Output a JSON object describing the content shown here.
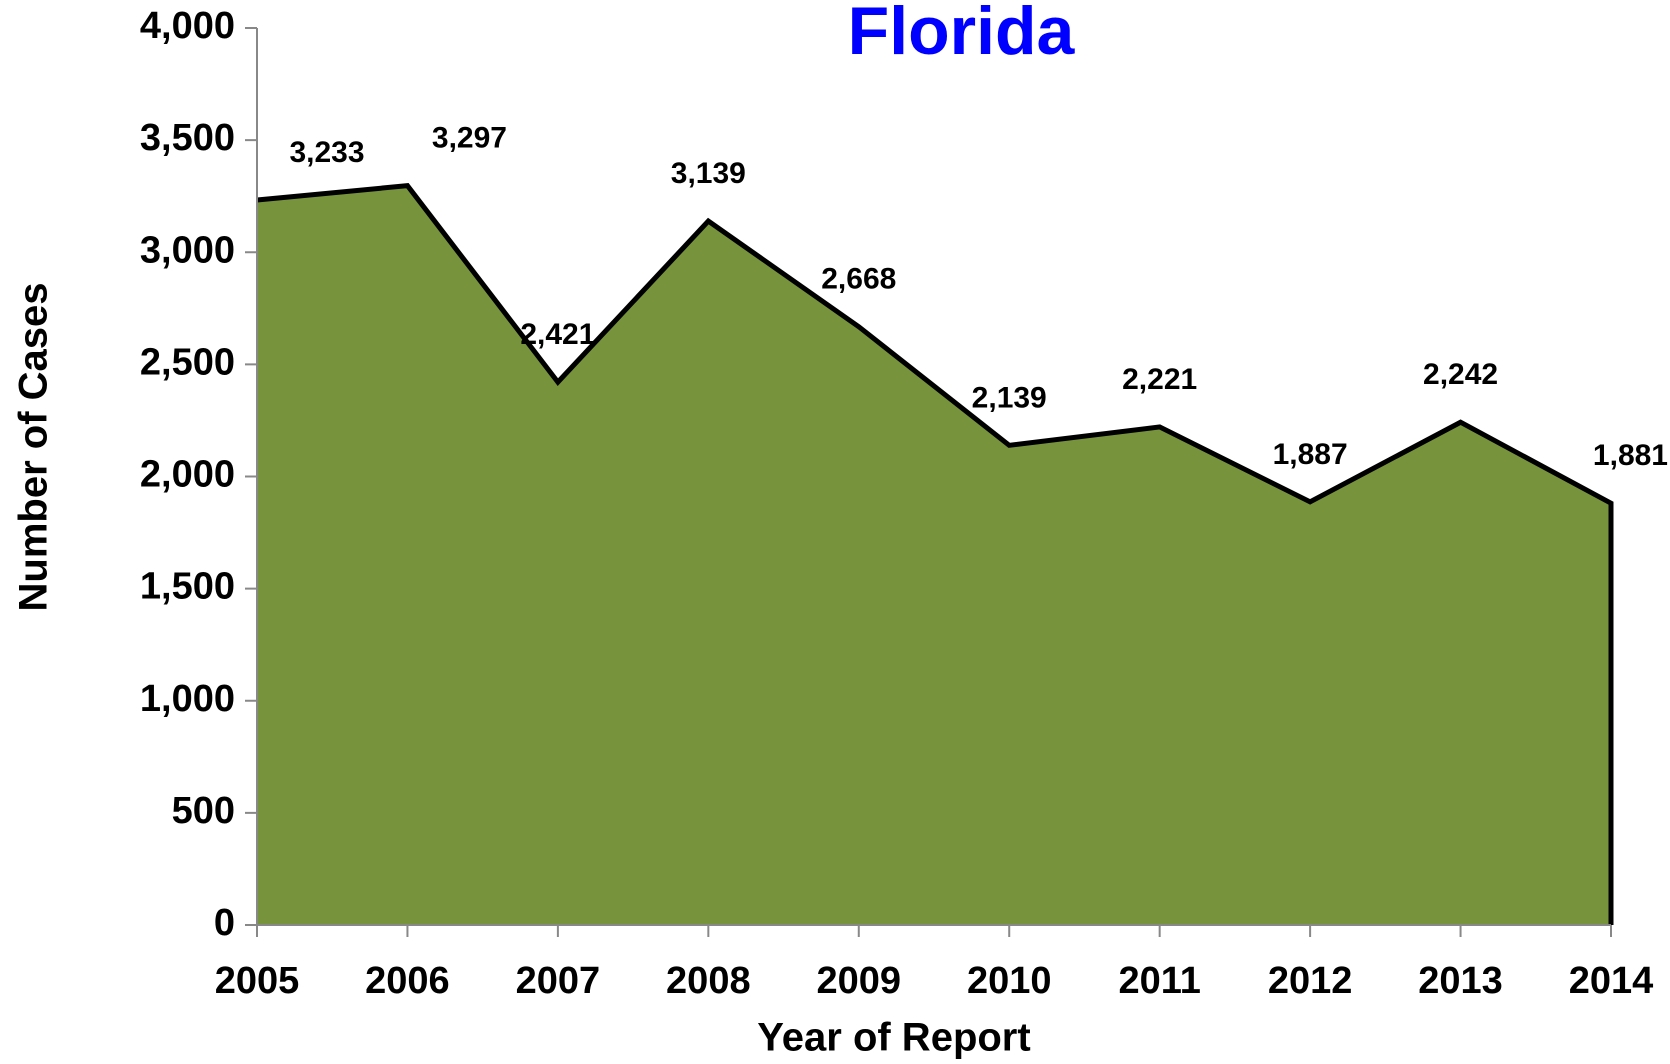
{
  "chart_data": {
    "type": "area",
    "title": "Florida",
    "x_label": "Year of Report",
    "y_label": "Number of Cases",
    "categories": [
      "2005",
      "2006",
      "2007",
      "2008",
      "2009",
      "2010",
      "2011",
      "2012",
      "2013",
      "2014"
    ],
    "values": [
      3233,
      3297,
      2421,
      3139,
      2668,
      2139,
      2221,
      1887,
      2242,
      1881
    ],
    "value_labels": [
      "3,233",
      "3,297",
      "2,421",
      "3,139",
      "2,668",
      "2,139",
      "2,221",
      "1,887",
      "2,242",
      "1,881"
    ],
    "color": "#77933c",
    "line_color": "#000000",
    "title_color": "#0000ff",
    "ylim": [
      0,
      4000
    ],
    "yticks": [
      0,
      500,
      {
        "value": 1000,
        "label": "1,000"
      },
      {
        "value": 1500,
        "label": "1,500"
      },
      {
        "value": 2000,
        "label": "2,000"
      },
      {
        "value": 2500,
        "label": "2,500"
      },
      {
        "value": 3000,
        "label": "3,000"
      },
      {
        "value": 3500,
        "label": "3,500"
      },
      {
        "value": 4000,
        "label": "4,000"
      }
    ]
  }
}
